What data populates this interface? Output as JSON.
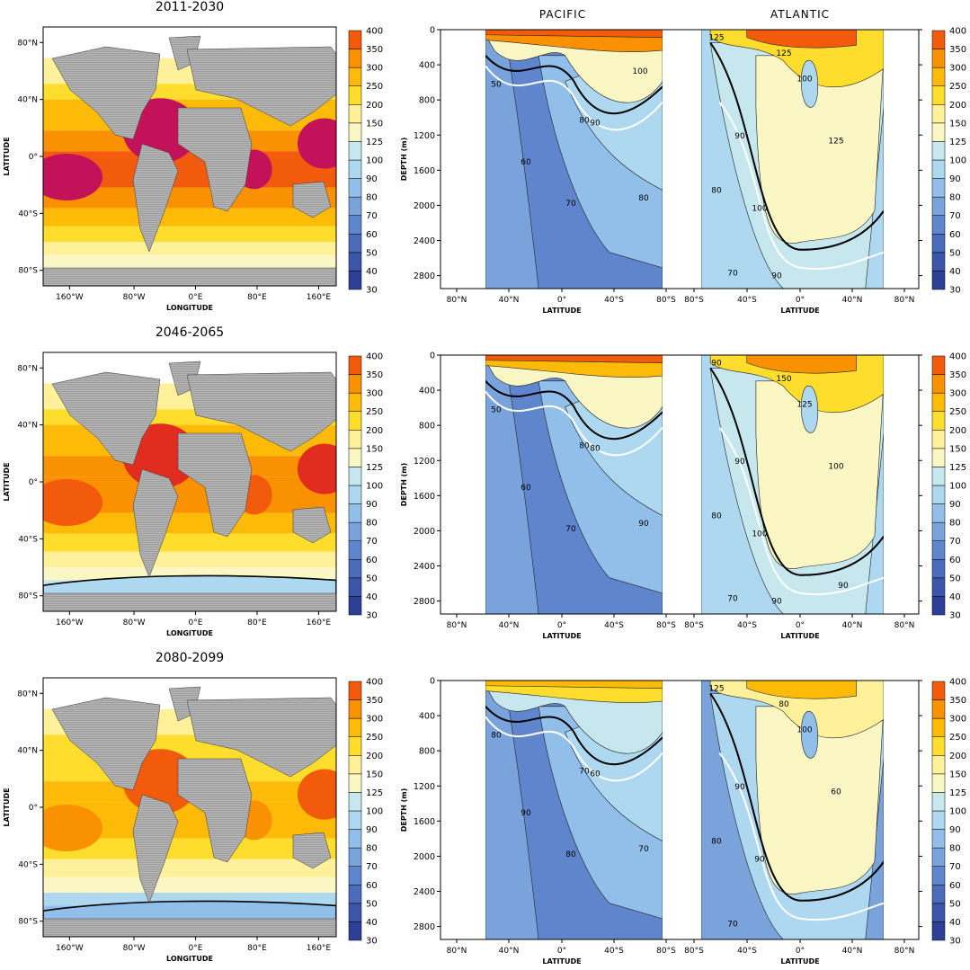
{
  "chart_data": {
    "type": "heatmap",
    "rows": [
      {
        "period": "2011-2030",
        "map": {
          "xlabel": "LONGITUDE",
          "ylabel": "LATITUDE",
          "xticks": [
            "160°W",
            "80°W",
            "0°E",
            "80°E",
            "160°E"
          ],
          "yticks": [
            "80°N",
            "40°N",
            "0°",
            "40°S",
            "80°S"
          ]
        },
        "section": {
          "ylabel": "DEPTH (m)",
          "yticks": [
            "0",
            "400",
            "800",
            "1200",
            "1600",
            "2000",
            "2400",
            "2800"
          ],
          "pacific_xticks": [
            "80°N",
            "40°N",
            "0°",
            "40°S",
            "80°S"
          ],
          "atlantic_xticks": [
            "80°S",
            "40°S",
            "0°",
            "40°N",
            "80°N"
          ],
          "xlabel": "LATITUDE",
          "contour_labels": {
            "pacific": [
              "50",
              "60",
              "70",
              "80",
              "90",
              "80",
              "100"
            ],
            "atlantic": [
              "125",
              "125",
              "100",
              "90",
              "80",
              "70",
              "125",
              "100",
              "90"
            ]
          }
        }
      },
      {
        "period": "2046-2065",
        "map": {
          "xlabel": "LONGITUDE",
          "ylabel": "LATITUDE",
          "xticks": [
            "160°W",
            "80°W",
            "0°E",
            "80°E",
            "160°E"
          ],
          "yticks": [
            "80°N",
            "40°N",
            "0°",
            "40°S",
            "80°S"
          ]
        },
        "section": {
          "ylabel": "DEPTH (m)",
          "yticks": [
            "0",
            "400",
            "800",
            "1200",
            "1600",
            "2000",
            "2400",
            "2800"
          ],
          "pacific_xticks": [
            "80°N",
            "40°N",
            "0°",
            "40°S",
            "80°S"
          ],
          "atlantic_xticks": [
            "80°S",
            "40°S",
            "0°",
            "40°N",
            "80°N"
          ],
          "xlabel": "LATITUDE",
          "contour_labels": {
            "pacific": [
              "50",
              "60",
              "70",
              "80",
              "80",
              "90"
            ],
            "atlantic": [
              "90",
              "150",
              "125",
              "90",
              "80",
              "70",
              "100",
              "100",
              "90",
              "90"
            ]
          }
        }
      },
      {
        "period": "2080-2099",
        "map": {
          "xlabel": "LONGITUDE",
          "ylabel": "LATITUDE",
          "xticks": [
            "160°W",
            "80°W",
            "0°E",
            "80°E",
            "160°E"
          ],
          "yticks": [
            "80°N",
            "40°N",
            "0°",
            "40°S",
            "80°S"
          ]
        },
        "section": {
          "ylabel": "DEPTH (m)",
          "yticks": [
            "0",
            "400",
            "800",
            "1200",
            "1600",
            "2000",
            "2400",
            "2800"
          ],
          "pacific_xticks": [
            "80°N",
            "40°N",
            "0°",
            "40°S",
            "80°S"
          ],
          "atlantic_xticks": [
            "80°S",
            "40°S",
            "0°",
            "40°N",
            "80°N"
          ],
          "xlabel": "LATITUDE",
          "contour_labels": {
            "pacific": [
              "80",
              "90",
              "80",
              "70",
              "60",
              "70"
            ],
            "atlantic": [
              "125",
              "80",
              "100",
              "90",
              "80",
              "70",
              "60",
              "90"
            ]
          }
        }
      }
    ],
    "column_titles": [
      "PACIFIC",
      "ATLANTIC"
    ],
    "colorbar": {
      "levels": [
        30,
        40,
        50,
        60,
        70,
        80,
        90,
        100,
        125,
        150,
        200,
        250,
        300,
        350,
        400
      ],
      "labels": [
        "30",
        "40",
        "50",
        "60",
        "70",
        "80",
        "90",
        "100",
        "125",
        "150",
        "200",
        "250",
        "300",
        "350",
        "400"
      ],
      "colors": [
        "#2e3f97",
        "#3b55a8",
        "#4a6cba",
        "#5f86cc",
        "#7aa3dc",
        "#92bfe9",
        "#aed8f0",
        "#c5e7ed",
        "#fbf7c4",
        "#fff09a",
        "#ffdd2c",
        "#fdba07",
        "#fa9101",
        "#f25a0c",
        "#e02d1f",
        "#c4125a"
      ],
      "land_color": "#a3a3a3"
    }
  }
}
